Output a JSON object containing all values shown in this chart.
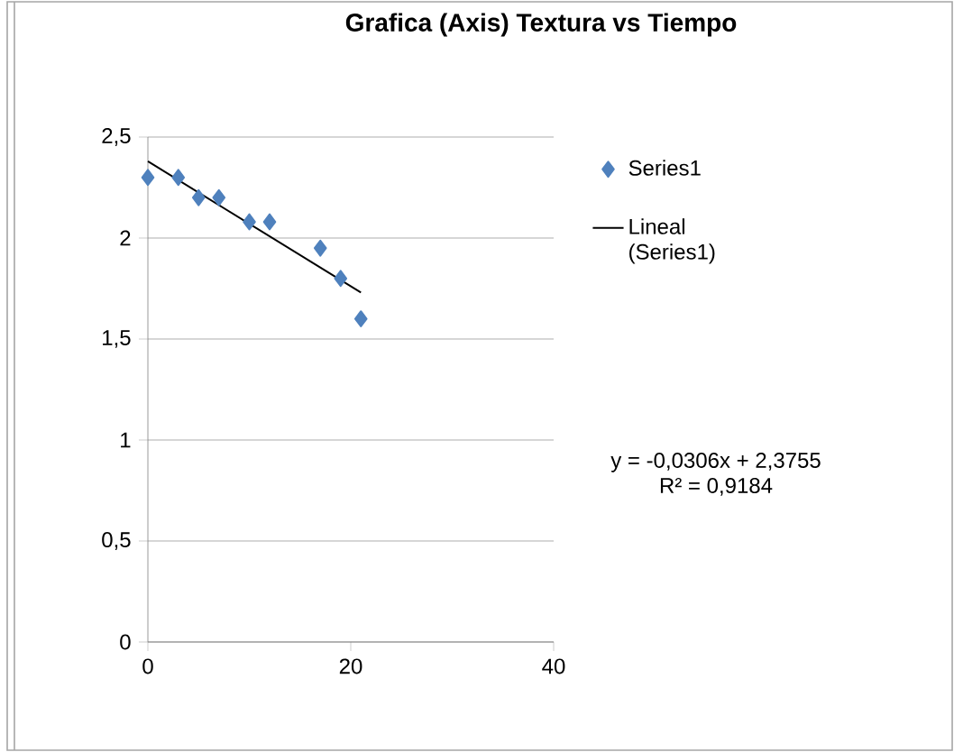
{
  "chart_data": {
    "type": "scatter",
    "title": "Grafica (Axis) Textura vs Tiempo",
    "xlim": [
      0,
      40
    ],
    "xticks": [
      0,
      20,
      40
    ],
    "ylim": [
      0,
      2.5
    ],
    "yticks": [
      0,
      {
        "value": 0.5,
        "label": "0,5"
      },
      1,
      {
        "value": 1.5,
        "label": "1,5"
      },
      2,
      {
        "value": 2.5,
        "label": "2,5"
      }
    ],
    "grid": "y",
    "legend": "right",
    "series": [
      {
        "name": "Series1",
        "marker": "diamond",
        "color": "#4f81bd",
        "x": [
          0,
          3,
          5,
          7,
          10,
          12,
          17,
          19,
          21
        ],
        "values": [
          2.3,
          2.3,
          2.2,
          2.2,
          2.08,
          2.08,
          1.95,
          1.8,
          1.6
        ]
      },
      {
        "name": "Lineal (Series1)",
        "type": "line",
        "marker": "none",
        "color": "#000000",
        "x": [
          0,
          21
        ],
        "values": [
          2.38,
          1.73
        ]
      }
    ],
    "annotations": [
      "y = -0,0306x + 2,3755",
      "R² = 0,9184"
    ]
  }
}
